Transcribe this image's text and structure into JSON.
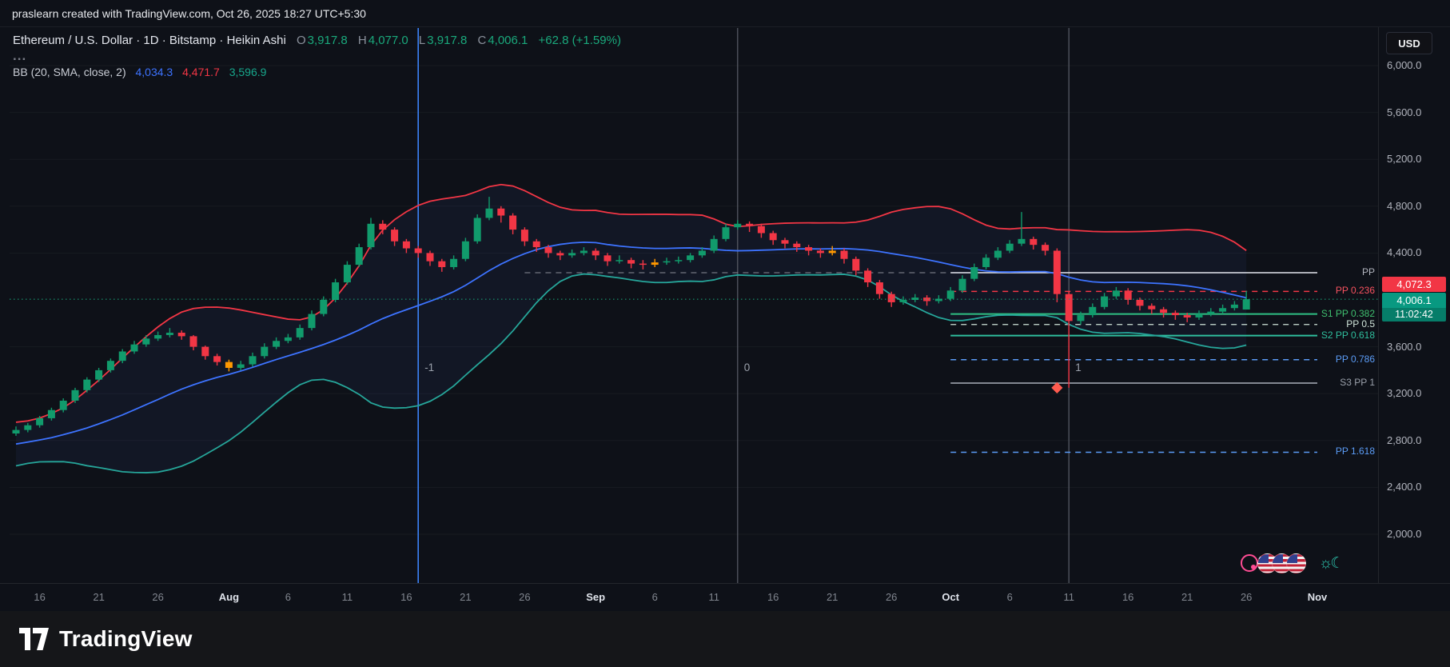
{
  "meta": {
    "attribution": "praslearn created with TradingView.com, Oct 26, 2025 18:27 UTC+5:30"
  },
  "header": {
    "series_title": "Ethereum / U.S. Dollar · 1D · Bitstamp · Heikin Ashi",
    "ohlc": {
      "o_label": "O",
      "o_value": "3,917.8",
      "h_label": "H",
      "h_value": "4,077.0",
      "l_label": "L",
      "l_value": "3,917.8",
      "c_label": "C",
      "c_value": "4,006.1",
      "change": "+62.8 (+1.59%)"
    },
    "more_row": "...",
    "bb": {
      "title": "BB (20, SMA, close, 2)",
      "basis": "4,034.3",
      "upper": "4,471.7",
      "lower": "3,596.9"
    }
  },
  "toolbar": {
    "currency_button": "USD"
  },
  "price_axis": {
    "ticks": [
      {
        "label": "6,000.0",
        "value": 6000
      },
      {
        "label": "5,600.0",
        "value": 5600
      },
      {
        "label": "5,200.0",
        "value": 5200
      },
      {
        "label": "4,800.0",
        "value": 4800
      },
      {
        "label": "4,400.0",
        "value": 4400
      },
      {
        "label": "3,600.0",
        "value": 3600
      },
      {
        "label": "3,200.0",
        "value": 3200
      },
      {
        "label": "2,800.0",
        "value": 2800
      },
      {
        "label": "2,400.0",
        "value": 2400
      },
      {
        "label": "2,000.0",
        "value": 2000
      }
    ],
    "badges": [
      {
        "value": "4,072.3",
        "price": 4072.3,
        "bg": "#f23645",
        "countdown": null
      },
      {
        "value": "4,006.1",
        "price": 4006.1,
        "bg": "#089981",
        "countdown": "11:02:42"
      }
    ]
  },
  "time_axis": {
    "labels": [
      {
        "text": "16",
        "index": 2,
        "major": false
      },
      {
        "text": "21",
        "index": 7,
        "major": false
      },
      {
        "text": "26",
        "index": 12,
        "major": false
      },
      {
        "text": "Aug",
        "index": 18,
        "major": true
      },
      {
        "text": "6",
        "index": 23,
        "major": false
      },
      {
        "text": "11",
        "index": 28,
        "major": false
      },
      {
        "text": "16",
        "index": 33,
        "major": false
      },
      {
        "text": "21",
        "index": 38,
        "major": false
      },
      {
        "text": "26",
        "index": 43,
        "major": false
      },
      {
        "text": "Sep",
        "index": 49,
        "major": true
      },
      {
        "text": "6",
        "index": 54,
        "major": false
      },
      {
        "text": "11",
        "index": 59,
        "major": false
      },
      {
        "text": "16",
        "index": 64,
        "major": false
      },
      {
        "text": "21",
        "index": 69,
        "major": false
      },
      {
        "text": "26",
        "index": 74,
        "major": false
      },
      {
        "text": "Oct",
        "index": 79,
        "major": true
      },
      {
        "text": "6",
        "index": 84,
        "major": false
      },
      {
        "text": "11",
        "index": 89,
        "major": false
      },
      {
        "text": "16",
        "index": 94,
        "major": false
      },
      {
        "text": "21",
        "index": 99,
        "major": false
      },
      {
        "text": "26",
        "index": 104,
        "major": false
      },
      {
        "text": "Nov",
        "index": 110,
        "major": true
      }
    ]
  },
  "chart_data": {
    "type": "candlestick",
    "subtype": "heikin-ashi",
    "title": "Ethereum / U.S. Dollar · 1D · Bitstamp · Heikin Ashi",
    "x_axis": {
      "start_date": "2025-07-14",
      "end_date": "2025-10-26",
      "interval": "1 day"
    },
    "y_axis": {
      "min": 2000,
      "max": 6000,
      "tick_step": 400
    },
    "current_price": 4006.1,
    "colors": {
      "up": "#119b6c",
      "down": "#f23645",
      "special": "#ff9800",
      "bb_upper": "#f23645",
      "bb_basis": "#3d73ff",
      "bb_lower": "#26a69a",
      "bb_fill": "rgba(80,118,255,0.06)",
      "current_price_line": "#1aa97c"
    },
    "candles_ohlc": [
      [
        2860,
        2920,
        2840,
        2890
      ],
      [
        2890,
        2950,
        2870,
        2930
      ],
      [
        2930,
        3010,
        2910,
        2990
      ],
      [
        2990,
        3080,
        2970,
        3060
      ],
      [
        3060,
        3160,
        3040,
        3140
      ],
      [
        3140,
        3250,
        3120,
        3230
      ],
      [
        3230,
        3340,
        3210,
        3320
      ],
      [
        3320,
        3420,
        3300,
        3400
      ],
      [
        3400,
        3500,
        3380,
        3480
      ],
      [
        3480,
        3580,
        3460,
        3560
      ],
      [
        3560,
        3650,
        3540,
        3620
      ],
      [
        3620,
        3700,
        3600,
        3670
      ],
      [
        3670,
        3730,
        3650,
        3700
      ],
      [
        3700,
        3760,
        3680,
        3720
      ],
      [
        3720,
        3740,
        3660,
        3690
      ],
      [
        3690,
        3700,
        3570,
        3600
      ],
      [
        3600,
        3610,
        3490,
        3520
      ],
      [
        3520,
        3540,
        3440,
        3470
      ],
      [
        3470,
        3490,
        3390,
        3420
      ],
      [
        3420,
        3480,
        3400,
        3450
      ],
      [
        3450,
        3550,
        3430,
        3520
      ],
      [
        3520,
        3630,
        3500,
        3600
      ],
      [
        3600,
        3680,
        3580,
        3650
      ],
      [
        3650,
        3710,
        3630,
        3680
      ],
      [
        3680,
        3790,
        3660,
        3760
      ],
      [
        3760,
        3910,
        3740,
        3880
      ],
      [
        3880,
        4030,
        3860,
        4000
      ],
      [
        4000,
        4180,
        3980,
        4150
      ],
      [
        4150,
        4330,
        4130,
        4300
      ],
      [
        4300,
        4480,
        4280,
        4450
      ],
      [
        4450,
        4700,
        4430,
        4650
      ],
      [
        4650,
        4680,
        4560,
        4600
      ],
      [
        4600,
        4620,
        4460,
        4500
      ],
      [
        4500,
        4520,
        4400,
        4440
      ],
      [
        4440,
        4460,
        4360,
        4400
      ],
      [
        4400,
        4420,
        4290,
        4330
      ],
      [
        4330,
        4350,
        4240,
        4280
      ],
      [
        4280,
        4380,
        4260,
        4350
      ],
      [
        4350,
        4530,
        4330,
        4500
      ],
      [
        4500,
        4730,
        4480,
        4700
      ],
      [
        4700,
        4880,
        4680,
        4780
      ],
      [
        4780,
        4800,
        4660,
        4720
      ],
      [
        4720,
        4740,
        4560,
        4600
      ],
      [
        4600,
        4620,
        4460,
        4500
      ],
      [
        4500,
        4520,
        4410,
        4450
      ],
      [
        4450,
        4470,
        4360,
        4400
      ],
      [
        4400,
        4420,
        4340,
        4380
      ],
      [
        4380,
        4430,
        4360,
        4400
      ],
      [
        4400,
        4450,
        4380,
        4420
      ],
      [
        4420,
        4440,
        4340,
        4380
      ],
      [
        4380,
        4400,
        4290,
        4330
      ],
      [
        4330,
        4380,
        4310,
        4340
      ],
      [
        4340,
        4360,
        4270,
        4310
      ],
      [
        4310,
        4340,
        4260,
        4300
      ],
      [
        4300,
        4350,
        4280,
        4320
      ],
      [
        4320,
        4360,
        4300,
        4330
      ],
      [
        4330,
        4370,
        4310,
        4340
      ],
      [
        4340,
        4400,
        4320,
        4380
      ],
      [
        4380,
        4450,
        4360,
        4420
      ],
      [
        4420,
        4550,
        4400,
        4520
      ],
      [
        4520,
        4650,
        4500,
        4620
      ],
      [
        4620,
        4680,
        4600,
        4650
      ],
      [
        4650,
        4670,
        4580,
        4630
      ],
      [
        4630,
        4650,
        4530,
        4570
      ],
      [
        4570,
        4590,
        4470,
        4510
      ],
      [
        4510,
        4530,
        4440,
        4480
      ],
      [
        4480,
        4500,
        4410,
        4450
      ],
      [
        4450,
        4470,
        4380,
        4420
      ],
      [
        4420,
        4440,
        4360,
        4400
      ],
      [
        4400,
        4460,
        4380,
        4420
      ],
      [
        4420,
        4440,
        4310,
        4350
      ],
      [
        4350,
        4370,
        4210,
        4250
      ],
      [
        4250,
        4270,
        4110,
        4150
      ],
      [
        4150,
        4170,
        4010,
        4050
      ],
      [
        4050,
        4070,
        3940,
        3980
      ],
      [
        3980,
        4030,
        3960,
        4000
      ],
      [
        4000,
        4050,
        3980,
        4020
      ],
      [
        4020,
        4040,
        3950,
        3990
      ],
      [
        3990,
        4040,
        3970,
        4010
      ],
      [
        4010,
        4110,
        3990,
        4080
      ],
      [
        4080,
        4210,
        4060,
        4180
      ],
      [
        4180,
        4310,
        4160,
        4280
      ],
      [
        4280,
        4390,
        4260,
        4360
      ],
      [
        4360,
        4450,
        4340,
        4420
      ],
      [
        4420,
        4510,
        4400,
        4480
      ],
      [
        4480,
        4750,
        4460,
        4520
      ],
      [
        4520,
        4540,
        4430,
        4470
      ],
      [
        4470,
        4490,
        4380,
        4420
      ],
      [
        4420,
        4440,
        3980,
        4050
      ],
      [
        4050,
        4070,
        3250,
        3820
      ],
      [
        3820,
        3900,
        3790,
        3870
      ],
      [
        3870,
        3970,
        3850,
        3940
      ],
      [
        3940,
        4060,
        3920,
        4030
      ],
      [
        4030,
        4110,
        4010,
        4080
      ],
      [
        4080,
        4100,
        3960,
        4000
      ],
      [
        4000,
        4020,
        3910,
        3950
      ],
      [
        3950,
        3970,
        3880,
        3920
      ],
      [
        3920,
        3940,
        3850,
        3890
      ],
      [
        3890,
        3910,
        3830,
        3870
      ],
      [
        3870,
        3890,
        3810,
        3850
      ],
      [
        3850,
        3910,
        3830,
        3880
      ],
      [
        3880,
        3930,
        3860,
        3900
      ],
      [
        3900,
        3960,
        3880,
        3930
      ],
      [
        3930,
        3990,
        3910,
        3960
      ],
      [
        3917.8,
        4077,
        3917.8,
        4006.1
      ]
    ],
    "special_candle_indices": [
      18,
      54,
      69
    ],
    "indicators": {
      "bollinger": {
        "name": "BB",
        "length": 20,
        "source": "close",
        "mult": 2,
        "basis_value": 4034.3,
        "upper_value": 4471.7,
        "lower_value": 3596.9,
        "seed_closes": [
          2600,
          2630,
          2660,
          2640,
          2680,
          2720,
          2700,
          2740,
          2770,
          2750,
          2790,
          2820,
          2800,
          2840,
          2860,
          2850,
          2880,
          2900,
          2880
        ]
      },
      "pivot_levels": [
        {
          "label": "",
          "price": 4232,
          "color": "#8a8e98",
          "style": "dashed",
          "width": 1,
          "from": 43,
          "to": 110,
          "label_color": ""
        },
        {
          "label": "PP",
          "price": 4232,
          "color": "#e3e6ee",
          "style": "solid",
          "width": 1.5,
          "from": 79,
          "to": 110,
          "label_color": "#b2b5be"
        },
        {
          "label": "PP 0.236",
          "price": 4072.3,
          "color": "#f23645",
          "style": "dashed",
          "width": 1.5,
          "from": 79,
          "to": 110,
          "label_color": "#f7525f"
        },
        {
          "label": "S1 PP 0.382",
          "price": 3880,
          "color": "#2fbe82",
          "style": "solid",
          "width": 2,
          "from": 79,
          "to": 110,
          "label_color": "#3fbf6f"
        },
        {
          "label": "PP 0.5",
          "price": 3790,
          "color": "#cfe3d8",
          "style": "dashed",
          "width": 1.2,
          "from": 79,
          "to": 110,
          "label_color": "#cfe3d8"
        },
        {
          "label": "S2 PP 0.618",
          "price": 3695,
          "color": "#2fbe9d",
          "style": "solid",
          "width": 2,
          "from": 79,
          "to": 110,
          "label_color": "#2fbe9d"
        },
        {
          "label": "PP 0.786",
          "price": 3490,
          "color": "#5b9cf6",
          "style": "dashed",
          "width": 1.5,
          "from": 79,
          "to": 110,
          "label_color": "#5b9cf6"
        },
        {
          "label": "S3 PP 1",
          "price": 3290,
          "color": "#aab0bb",
          "style": "solid",
          "width": 1.5,
          "from": 79,
          "to": 110,
          "label_color": "#9aa0aa"
        },
        {
          "label": "PP 1.618",
          "price": 2700,
          "color": "#5b9cf6",
          "style": "dashed",
          "width": 1.5,
          "from": 79,
          "to": 110,
          "label_color": "#5b9cf6"
        }
      ],
      "cycle_vlines": [
        {
          "label": "-1",
          "index": 34,
          "color": "#3b82f6",
          "width": 1.6
        },
        {
          "label": "0",
          "index": 61,
          "color": "#5a5e68",
          "width": 1.2
        },
        {
          "label": "1",
          "index": 89,
          "color": "#5a5e68",
          "width": 1.2
        }
      ],
      "marker": {
        "type": "diamond",
        "index": 88,
        "price": 3250,
        "color": "#ff5b4f"
      }
    }
  },
  "bottom_right_icons": {
    "flag_country": "US",
    "flag_count": 3,
    "theme_glyph": "☼☾"
  },
  "footer": {
    "brand": "TradingView"
  }
}
